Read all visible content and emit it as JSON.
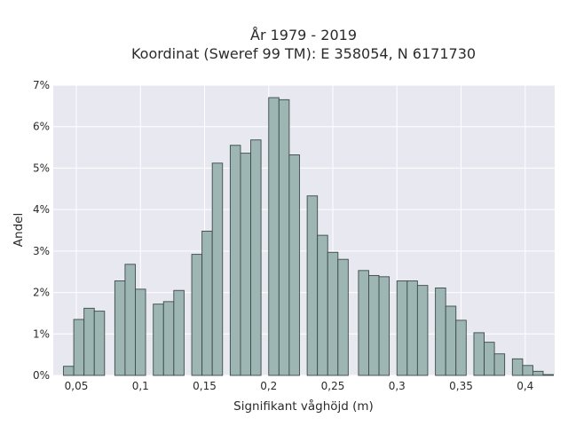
{
  "chart_data": {
    "type": "bar",
    "title": "År 1979 - 2019",
    "subtitle": "Koordinat (Sweref 99 TM): E 358054, N 6171730",
    "xlabel": "Signifikant våghöjd (m)",
    "ylabel": "Andel",
    "xlim": [
      0.032,
      0.423
    ],
    "ylim": [
      0,
      7
    ],
    "bin_width": 0.008,
    "grid": true,
    "colors": {
      "bar_fill": "#9db5b3",
      "bar_edge": "#3c4a49",
      "plot_bg": "#e8e9f0",
      "grid": "#ffffff"
    },
    "x_ticks": [
      {
        "value": 0.05,
        "label": "0,05"
      },
      {
        "value": 0.1,
        "label": "0,1"
      },
      {
        "value": 0.15,
        "label": "0,15"
      },
      {
        "value": 0.2,
        "label": "0,2"
      },
      {
        "value": 0.25,
        "label": "0,25"
      },
      {
        "value": 0.3,
        "label": "0,3"
      },
      {
        "value": 0.35,
        "label": "0,35"
      },
      {
        "value": 0.4,
        "label": "0,4"
      }
    ],
    "y_ticks": [
      {
        "value": 0,
        "label": "0%"
      },
      {
        "value": 1,
        "label": "1%"
      },
      {
        "value": 2,
        "label": "2%"
      },
      {
        "value": 3,
        "label": "3%"
      },
      {
        "value": 4,
        "label": "4%"
      },
      {
        "value": 5,
        "label": "5%"
      },
      {
        "value": 6,
        "label": "6%"
      },
      {
        "value": 7,
        "label": "7%"
      }
    ],
    "bars": [
      {
        "x": 0.044,
        "y": 0.22
      },
      {
        "x": 0.052,
        "y": 1.35
      },
      {
        "x": 0.06,
        "y": 1.62
      },
      {
        "x": 0.068,
        "y": 1.55
      },
      {
        "x": 0.084,
        "y": 2.28
      },
      {
        "x": 0.092,
        "y": 2.68
      },
      {
        "x": 0.1,
        "y": 2.08
      },
      {
        "x": 0.114,
        "y": 1.72
      },
      {
        "x": 0.122,
        "y": 1.78
      },
      {
        "x": 0.13,
        "y": 2.05
      },
      {
        "x": 0.144,
        "y": 2.92
      },
      {
        "x": 0.152,
        "y": 3.48
      },
      {
        "x": 0.16,
        "y": 5.12
      },
      {
        "x": 0.174,
        "y": 5.55
      },
      {
        "x": 0.182,
        "y": 5.36
      },
      {
        "x": 0.19,
        "y": 5.68
      },
      {
        "x": 0.204,
        "y": 6.7
      },
      {
        "x": 0.212,
        "y": 6.65
      },
      {
        "x": 0.22,
        "y": 5.32
      },
      {
        "x": 0.234,
        "y": 4.33
      },
      {
        "x": 0.242,
        "y": 3.38
      },
      {
        "x": 0.25,
        "y": 2.97
      },
      {
        "x": 0.258,
        "y": 2.8
      },
      {
        "x": 0.274,
        "y": 2.53
      },
      {
        "x": 0.282,
        "y": 2.41
      },
      {
        "x": 0.29,
        "y": 2.38
      },
      {
        "x": 0.304,
        "y": 2.28
      },
      {
        "x": 0.312,
        "y": 2.28
      },
      {
        "x": 0.32,
        "y": 2.17
      },
      {
        "x": 0.334,
        "y": 2.11
      },
      {
        "x": 0.342,
        "y": 1.67
      },
      {
        "x": 0.35,
        "y": 1.33
      },
      {
        "x": 0.364,
        "y": 1.03
      },
      {
        "x": 0.372,
        "y": 0.8
      },
      {
        "x": 0.38,
        "y": 0.52
      },
      {
        "x": 0.394,
        "y": 0.4
      },
      {
        "x": 0.402,
        "y": 0.24
      },
      {
        "x": 0.41,
        "y": 0.1
      },
      {
        "x": 0.418,
        "y": 0.02
      }
    ]
  }
}
